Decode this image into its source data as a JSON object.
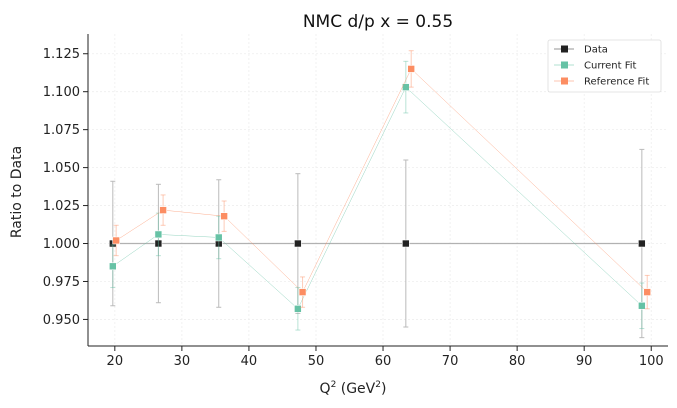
{
  "chart_data": {
    "type": "line",
    "title": "NMC d/p x = 0.55",
    "xlabel_main": "Q",
    "xlabel_sup": "2",
    "xlabel_mid": " (GeV",
    "xlabel_sup2": "2",
    "xlabel_end": ")",
    "ylabel": "Ratio to Data",
    "xlim": [
      16,
      102.5
    ],
    "ylim": [
      0.9325,
      1.138
    ],
    "x_ticks": [
      20,
      30,
      40,
      50,
      60,
      70,
      80,
      90,
      100
    ],
    "x_tick_labels": [
      "20",
      "30",
      "40",
      "50",
      "60",
      "70",
      "80",
      "90",
      "100"
    ],
    "y_ticks": [
      0.95,
      0.975,
      1.0,
      1.025,
      1.05,
      1.075,
      1.1,
      1.125
    ],
    "y_tick_labels": [
      "0.950",
      "0.975",
      "1.000",
      "1.025",
      "1.050",
      "1.075",
      "1.100",
      "1.125"
    ],
    "grid": true,
    "legend_position": "top-right",
    "series": [
      {
        "name": "Data",
        "color": "#222222",
        "line_color": "#aaaaaa",
        "points": [
          {
            "x": 19.7,
            "y": 1.0,
            "err": 0.041
          },
          {
            "x": 26.5,
            "y": 1.0,
            "err": 0.039
          },
          {
            "x": 35.5,
            "y": 1.0,
            "err": 0.042
          },
          {
            "x": 47.3,
            "y": 1.0,
            "err": 0.046
          },
          {
            "x": 63.4,
            "y": 1.0,
            "err": 0.055
          },
          {
            "x": 98.6,
            "y": 1.0,
            "err": 0.062
          }
        ]
      },
      {
        "name": "Current Fit",
        "color": "#66c2a5",
        "line_color": "#66c2a5",
        "points": [
          {
            "x": 19.7,
            "y": 0.985,
            "err": 0.014
          },
          {
            "x": 26.5,
            "y": 1.006,
            "err": 0.014
          },
          {
            "x": 35.5,
            "y": 1.004,
            "err": 0.014
          },
          {
            "x": 47.3,
            "y": 0.957,
            "err": 0.014
          },
          {
            "x": 63.4,
            "y": 1.103,
            "err": 0.017
          },
          {
            "x": 98.6,
            "y": 0.959,
            "err": 0.015
          }
        ]
      },
      {
        "name": "Reference Fit",
        "color": "#fc8d62",
        "line_color": "#fc8d62",
        "points": [
          {
            "x": 20.2,
            "y": 1.002,
            "err": 0.01
          },
          {
            "x": 27.2,
            "y": 1.022,
            "err": 0.01
          },
          {
            "x": 36.3,
            "y": 1.018,
            "err": 0.01
          },
          {
            "x": 48.0,
            "y": 0.968,
            "err": 0.01
          },
          {
            "x": 64.2,
            "y": 1.115,
            "err": 0.012
          },
          {
            "x": 99.4,
            "y": 0.968,
            "err": 0.011
          }
        ]
      }
    ]
  }
}
